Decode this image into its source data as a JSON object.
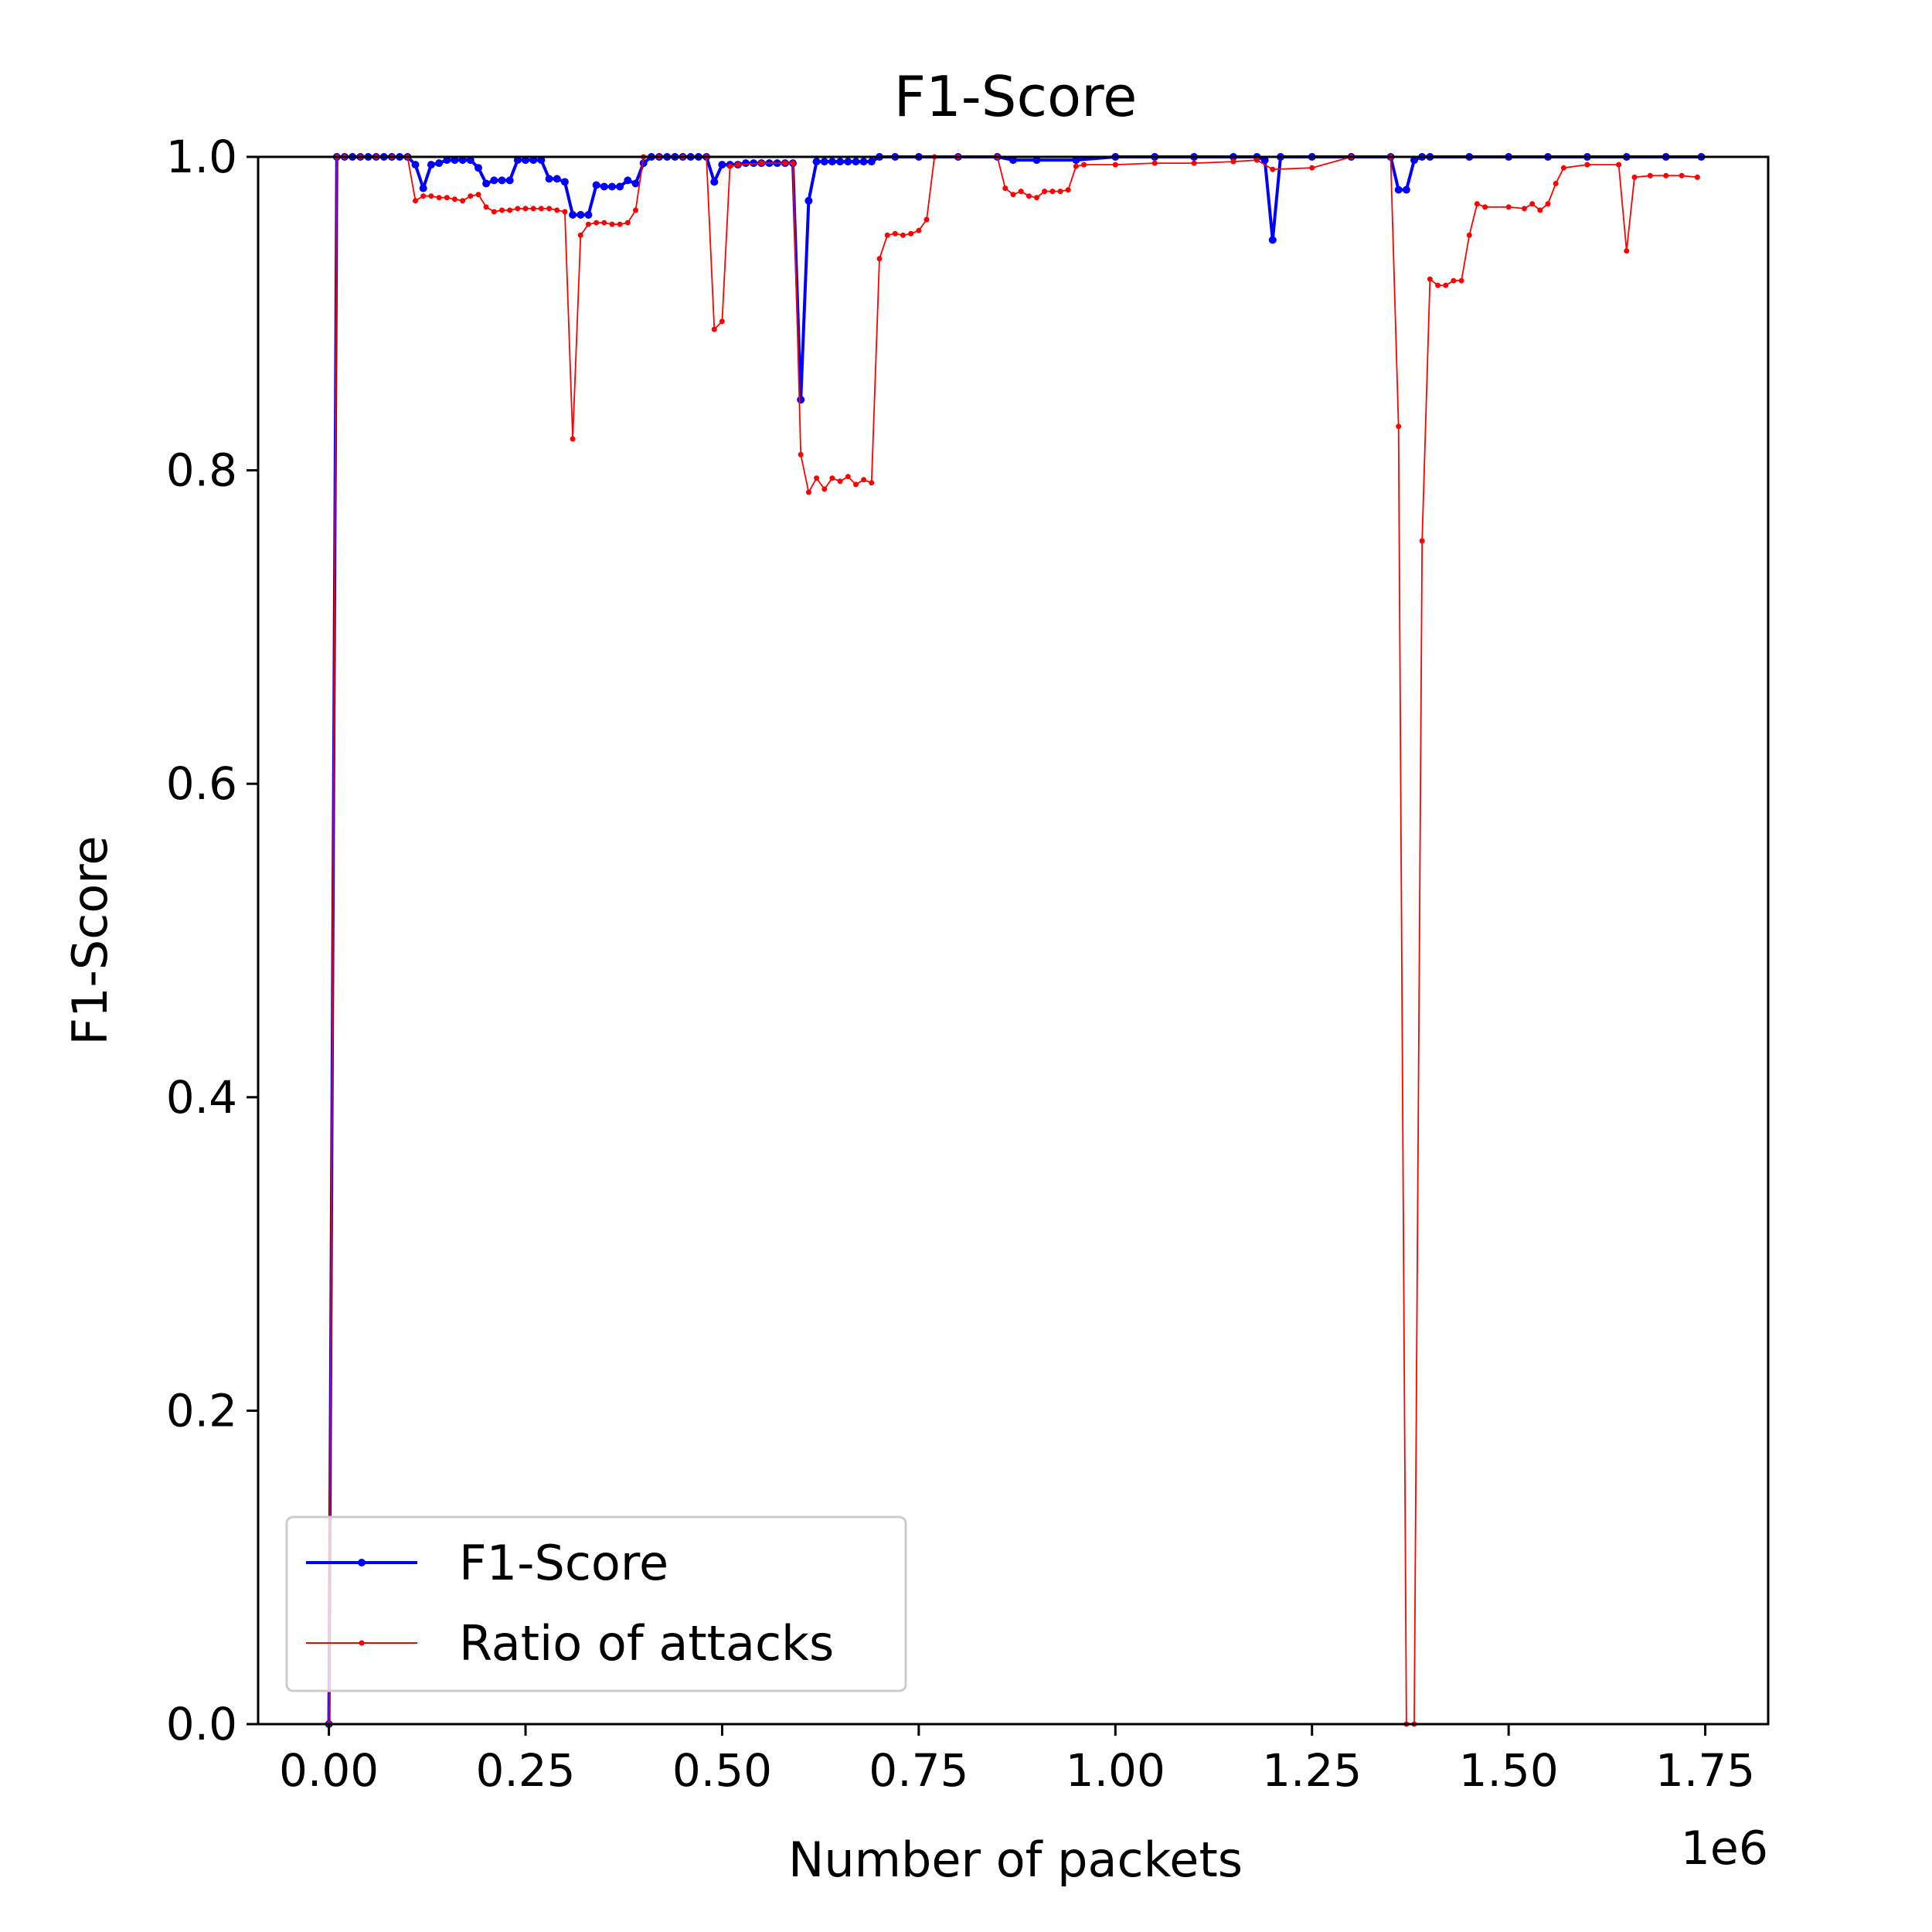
{
  "chart_data": {
    "type": "line",
    "title": "F1-Score",
    "xlabel": "Number of packets",
    "ylabel": "F1-Score",
    "x_scale_note": "1e6",
    "xlim": [
      -0.09,
      1.83
    ],
    "ylim": [
      0.0,
      1.0
    ],
    "x_ticks": [
      0.0,
      0.25,
      0.5,
      0.75,
      1.0,
      1.25,
      1.5,
      1.75
    ],
    "x_tick_labels": [
      "0.00",
      "0.25",
      "0.50",
      "0.75",
      "1.00",
      "1.25",
      "1.50",
      "1.75"
    ],
    "y_ticks": [
      0.0,
      0.2,
      0.4,
      0.6,
      0.8,
      1.0
    ],
    "y_tick_labels": [
      "0.0",
      "0.2",
      "0.4",
      "0.6",
      "0.8",
      "1.0"
    ],
    "grid": false,
    "legend_position": "lower-left",
    "series": [
      {
        "name": "F1-Score",
        "color": "#0000ff",
        "x": [
          0.0,
          0.01,
          0.02,
          0.03,
          0.04,
          0.05,
          0.06,
          0.07,
          0.08,
          0.09,
          0.1,
          0.11,
          0.12,
          0.13,
          0.14,
          0.15,
          0.16,
          0.17,
          0.18,
          0.19,
          0.2,
          0.21,
          0.22,
          0.23,
          0.24,
          0.25,
          0.26,
          0.27,
          0.28,
          0.29,
          0.3,
          0.31,
          0.32,
          0.33,
          0.34,
          0.35,
          0.36,
          0.37,
          0.38,
          0.39,
          0.4,
          0.41,
          0.42,
          0.43,
          0.44,
          0.45,
          0.46,
          0.47,
          0.48,
          0.49,
          0.5,
          0.51,
          0.52,
          0.53,
          0.54,
          0.55,
          0.56,
          0.57,
          0.58,
          0.59,
          0.6,
          0.61,
          0.62,
          0.63,
          0.64,
          0.65,
          0.66,
          0.67,
          0.68,
          0.69,
          0.7,
          0.72,
          0.75,
          0.8,
          0.85,
          0.87,
          0.9,
          0.95,
          1.0,
          1.05,
          1.1,
          1.15,
          1.18,
          1.19,
          1.2,
          1.21,
          1.25,
          1.3,
          1.35,
          1.36,
          1.37,
          1.38,
          1.39,
          1.4,
          1.45,
          1.5,
          1.55,
          1.6,
          1.65,
          1.7,
          1.745
        ],
        "y": [
          0.0,
          1.0,
          1.0,
          1.0,
          1.0,
          1.0,
          1.0,
          1.0,
          1.0,
          1.0,
          1.0,
          0.995,
          0.98,
          0.995,
          0.996,
          0.998,
          0.998,
          0.998,
          0.998,
          0.993,
          0.983,
          0.985,
          0.985,
          0.985,
          0.998,
          0.998,
          0.998,
          0.998,
          0.986,
          0.986,
          0.984,
          0.963,
          0.963,
          0.963,
          0.982,
          0.981,
          0.981,
          0.981,
          0.985,
          0.983,
          0.996,
          1.0,
          1.0,
          1.0,
          1.0,
          1.0,
          1.0,
          1.0,
          1.0,
          0.984,
          0.995,
          0.995,
          0.995,
          0.996,
          0.996,
          0.996,
          0.996,
          0.996,
          0.996,
          0.996,
          0.845,
          0.972,
          0.997,
          0.997,
          0.997,
          0.997,
          0.997,
          0.997,
          0.997,
          0.997,
          1.0,
          1.0,
          1.0,
          1.0,
          1.0,
          0.998,
          0.998,
          0.998,
          1.0,
          1.0,
          1.0,
          1.0,
          1.0,
          0.998,
          0.947,
          1.0,
          1.0,
          1.0,
          1.0,
          0.979,
          0.979,
          0.998,
          1.0,
          1.0,
          1.0,
          1.0,
          1.0,
          1.0,
          1.0,
          1.0,
          1.0
        ]
      },
      {
        "name": "Ratio of attacks",
        "color": "#ff0000",
        "x": [
          0.0,
          0.01,
          0.02,
          0.04,
          0.06,
          0.08,
          0.1,
          0.11,
          0.12,
          0.13,
          0.14,
          0.15,
          0.16,
          0.17,
          0.18,
          0.19,
          0.2,
          0.21,
          0.22,
          0.23,
          0.24,
          0.25,
          0.26,
          0.27,
          0.28,
          0.29,
          0.3,
          0.31,
          0.32,
          0.33,
          0.34,
          0.35,
          0.36,
          0.37,
          0.38,
          0.39,
          0.4,
          0.42,
          0.45,
          0.48,
          0.49,
          0.5,
          0.51,
          0.52,
          0.55,
          0.58,
          0.59,
          0.6,
          0.61,
          0.62,
          0.63,
          0.64,
          0.65,
          0.66,
          0.67,
          0.68,
          0.69,
          0.7,
          0.71,
          0.72,
          0.73,
          0.74,
          0.75,
          0.76,
          0.77,
          0.8,
          0.85,
          0.86,
          0.87,
          0.88,
          0.89,
          0.9,
          0.91,
          0.92,
          0.93,
          0.94,
          0.95,
          0.96,
          1.0,
          1.05,
          1.1,
          1.15,
          1.18,
          1.2,
          1.25,
          1.3,
          1.35,
          1.36,
          1.37,
          1.38,
          1.39,
          1.4,
          1.41,
          1.42,
          1.43,
          1.44,
          1.45,
          1.46,
          1.47,
          1.5,
          1.52,
          1.53,
          1.54,
          1.55,
          1.56,
          1.57,
          1.6,
          1.64,
          1.65,
          1.66,
          1.68,
          1.7,
          1.72,
          1.74
        ],
        "y": [
          0.0,
          1.0,
          1.0,
          1.0,
          1.0,
          1.0,
          1.0,
          0.972,
          0.975,
          0.975,
          0.974,
          0.974,
          0.973,
          0.972,
          0.975,
          0.976,
          0.968,
          0.965,
          0.966,
          0.966,
          0.967,
          0.967,
          0.967,
          0.967,
          0.967,
          0.966,
          0.965,
          0.82,
          0.95,
          0.957,
          0.958,
          0.958,
          0.957,
          0.957,
          0.958,
          0.966,
          1.0,
          1.0,
          1.0,
          1.0,
          0.89,
          0.895,
          0.994,
          0.995,
          0.996,
          0.996,
          0.996,
          0.81,
          0.786,
          0.795,
          0.788,
          0.795,
          0.793,
          0.796,
          0.791,
          0.794,
          0.792,
          0.935,
          0.95,
          0.951,
          0.95,
          0.951,
          0.953,
          0.96,
          1.0,
          1.0,
          1.0,
          0.98,
          0.976,
          0.978,
          0.975,
          0.974,
          0.978,
          0.978,
          0.978,
          0.979,
          0.994,
          0.995,
          0.995,
          0.996,
          0.996,
          0.997,
          0.998,
          0.992,
          0.993,
          1.0,
          1.0,
          0.828,
          0.0,
          0.0,
          0.755,
          0.922,
          0.918,
          0.918,
          0.921,
          0.921,
          0.95,
          0.97,
          0.968,
          0.968,
          0.967,
          0.97,
          0.966,
          0.97,
          0.983,
          0.993,
          0.995,
          0.995,
          0.94,
          0.987,
          0.988,
          0.988,
          0.988,
          0.987
        ]
      }
    ]
  }
}
